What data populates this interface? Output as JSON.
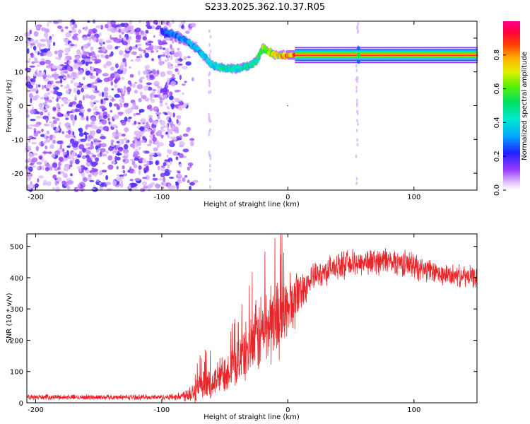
{
  "title": "S233.2025.362.10.37.R05",
  "chart_data": [
    {
      "type": "heatmap",
      "name": "spectrogram",
      "xlabel": "Height of straight line (km)",
      "ylabel": "Frequency (Hz)",
      "xlim": [
        -207,
        150
      ],
      "ylim": [
        -25,
        25
      ],
      "x_ticks": [
        -200,
        -100,
        0,
        100
      ],
      "y_ticks": [
        -20,
        -10,
        0,
        10,
        20
      ],
      "colorbar": {
        "label": "Normalized spectral amplitude",
        "range": [
          0,
          1
        ],
        "ticks": [
          0.0,
          0.2,
          0.4,
          0.6,
          0.8
        ]
      },
      "noise_region_x": [
        -207,
        -85
      ],
      "ridge": {
        "x": [
          -100,
          -90,
          -80,
          -70,
          -60,
          -50,
          -40,
          -30,
          -25,
          -20,
          -15,
          -10,
          -5,
          0,
          10,
          20,
          55,
          100,
          150
        ],
        "freq": [
          22,
          21,
          19,
          16,
          12,
          11,
          11,
          12,
          13,
          17,
          16,
          15,
          15,
          15,
          15,
          15,
          15,
          15,
          15
        ],
        "amplitude": [
          0.3,
          0.35,
          0.4,
          0.45,
          0.5,
          0.55,
          0.55,
          0.55,
          0.6,
          0.7,
          0.75,
          0.8,
          0.85,
          0.95,
          1.0,
          1.0,
          1.0,
          1.0,
          1.0
        ]
      }
    },
    {
      "type": "line",
      "name": "snr",
      "xlabel": "Height of straight line (km)",
      "ylabel": "SNR (10 * v/v)",
      "xlim": [
        -207,
        150
      ],
      "ylim": [
        0,
        540
      ],
      "x_ticks": [
        -200,
        -100,
        0,
        100
      ],
      "y_ticks": [
        0,
        100,
        200,
        300,
        400,
        500
      ],
      "color": "#e8262a",
      "envelope": {
        "x": [
          -207,
          -150,
          -100,
          -85,
          -70,
          -60,
          -50,
          -40,
          -30,
          -20,
          -10,
          0,
          10,
          20,
          30,
          40,
          60,
          80,
          100,
          120,
          150
        ],
        "mean": [
          18,
          18,
          18,
          20,
          45,
          60,
          100,
          130,
          180,
          230,
          270,
          300,
          360,
          400,
          420,
          440,
          450,
          455,
          440,
          410,
          400
        ],
        "spread": [
          10,
          10,
          10,
          15,
          60,
          60,
          80,
          90,
          120,
          160,
          160,
          140,
          80,
          50,
          50,
          50,
          50,
          50,
          50,
          40,
          40
        ]
      }
    }
  ]
}
